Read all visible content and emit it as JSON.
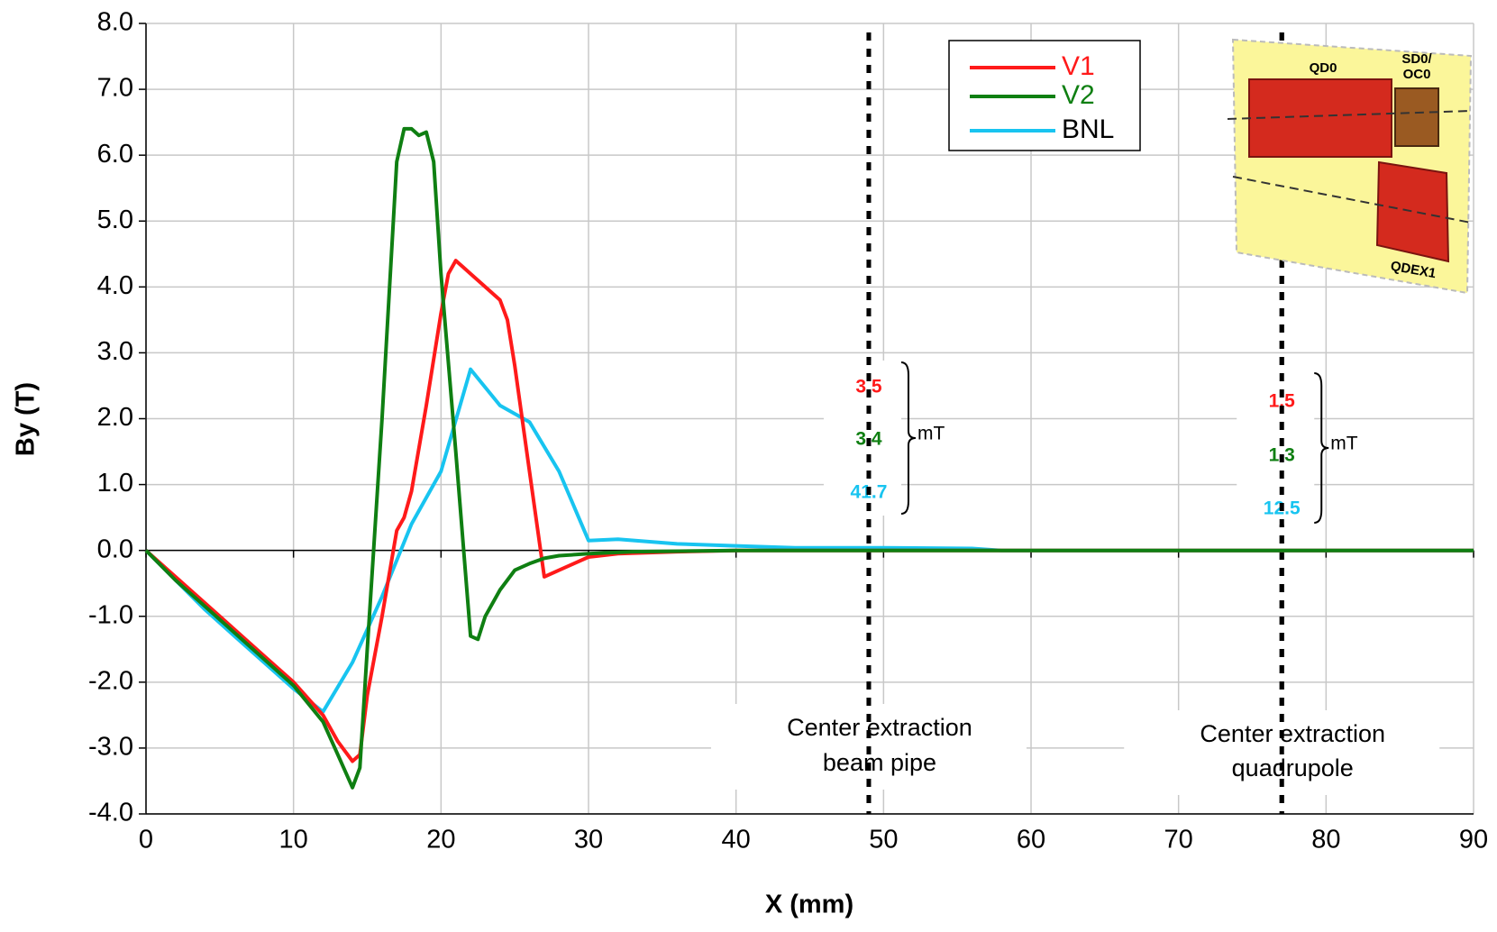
{
  "chart_data": {
    "type": "line",
    "x_label": "X (mm)",
    "y_label": "By (T)",
    "xlim": [
      0,
      90
    ],
    "ylim": [
      -4,
      8
    ],
    "xticks": [
      0,
      10,
      20,
      30,
      40,
      50,
      60,
      70,
      80,
      90
    ],
    "yticks": [
      {
        "value": -4,
        "label": "-4.0"
      },
      {
        "value": -3,
        "label": "-3.0"
      },
      {
        "value": -2,
        "label": "-2.0"
      },
      {
        "value": -1,
        "label": "-1.0"
      },
      {
        "value": 0,
        "label": "0.0"
      },
      {
        "value": 1,
        "label": "1.0"
      },
      {
        "value": 2,
        "label": "2.0"
      },
      {
        "value": 3,
        "label": "3.0"
      },
      {
        "value": 4,
        "label": "4.0"
      },
      {
        "value": 5,
        "label": "5.0"
      },
      {
        "value": 6,
        "label": "6.0"
      },
      {
        "value": 7,
        "label": "7.0"
      },
      {
        "value": 8,
        "label": "8.0"
      }
    ],
    "grid": true,
    "legend": "upper-right",
    "series": [
      {
        "name": "V1",
        "color": "#ff1a1a",
        "legend_text_color": "#ff1a1a",
        "x": [
          0,
          2,
          4,
          6,
          8,
          10,
          12,
          13,
          14,
          14.5,
          15,
          16,
          17,
          17.5,
          18,
          19,
          20,
          20.5,
          21,
          21.5,
          22,
          23,
          24,
          24.5,
          25,
          26,
          27,
          28,
          29,
          30,
          32,
          36,
          40,
          90
        ],
        "values": [
          0,
          -0.4,
          -0.8,
          -1.2,
          -1.6,
          -2.0,
          -2.5,
          -2.9,
          -3.2,
          -3.1,
          -2.2,
          -1.0,
          0.3,
          0.5,
          0.9,
          2.2,
          3.6,
          4.2,
          4.4,
          4.3,
          4.2,
          4.0,
          3.8,
          3.5,
          2.8,
          1.2,
          -0.4,
          -0.3,
          -0.2,
          -0.1,
          -0.05,
          -0.02,
          0,
          0
        ]
      },
      {
        "name": "V2",
        "color": "#0f7f12",
        "legend_text_color": "#0f7f12",
        "x": [
          0,
          2,
          4,
          6,
          8,
          10,
          12,
          13,
          14,
          14.5,
          15,
          16,
          17,
          17.5,
          18,
          18.5,
          19,
          19.5,
          20,
          21,
          22,
          22.5,
          23,
          24,
          25,
          26,
          27,
          28,
          30,
          33,
          40,
          90
        ],
        "values": [
          0,
          -0.45,
          -0.85,
          -1.25,
          -1.65,
          -2.05,
          -2.6,
          -3.1,
          -3.6,
          -3.3,
          -1.5,
          2.0,
          5.9,
          6.4,
          6.4,
          6.3,
          6.35,
          5.9,
          4.2,
          1.5,
          -1.3,
          -1.35,
          -1.0,
          -0.6,
          -0.3,
          -0.2,
          -0.12,
          -0.08,
          -0.05,
          -0.02,
          0,
          0
        ]
      },
      {
        "name": "BNL",
        "color": "#18c4f0",
        "legend_text_color": "#000000",
        "x": [
          0,
          2,
          4,
          6,
          8,
          10,
          12,
          14,
          16,
          18,
          20,
          22,
          24,
          26,
          28,
          30,
          32,
          36,
          40,
          44,
          50,
          56,
          58,
          90
        ],
        "values": [
          0,
          -0.45,
          -0.9,
          -1.3,
          -1.7,
          -2.1,
          -2.45,
          -1.7,
          -0.7,
          0.4,
          1.2,
          2.75,
          2.2,
          1.95,
          1.2,
          0.15,
          0.17,
          0.1,
          0.07,
          0.04,
          0.04,
          0.03,
          0,
          0
        ]
      }
    ],
    "markers": [
      {
        "x": 49,
        "values": [
          3.5,
          3.4,
          41.7
        ],
        "colors": [
          "#ff1a1a",
          "#0f7f12",
          "#18c4f0"
        ],
        "unit": "mT",
        "label": [
          "Center extraction",
          "beam pipe"
        ]
      },
      {
        "x": 77,
        "values": [
          1.5,
          1.3,
          12.5
        ],
        "colors": [
          "#ff1a1a",
          "#0f7f12",
          "#18c4f0"
        ],
        "unit": "mT",
        "label": [
          "Center extraction",
          "quadrupole"
        ]
      }
    ],
    "inset": {
      "labels": [
        "QD0",
        "SD0/",
        "OC0",
        "QDEX1"
      ]
    }
  }
}
